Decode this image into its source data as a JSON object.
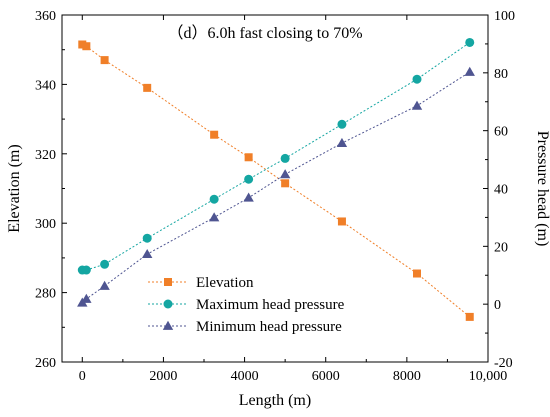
{
  "chart_data": {
    "type": "scatter",
    "title": "（d）6.0h fast closing to 70%",
    "xlabel": "Length (m)",
    "ylabel_left": "Elevation (m)",
    "ylabel_right": "Pressure head (m)",
    "xlim": [
      -500,
      10000
    ],
    "ylim_left": [
      260,
      360
    ],
    "ylim_right": [
      -20,
      100
    ],
    "x_ticks": [
      0,
      2000,
      4000,
      6000,
      8000,
      10000
    ],
    "x_tick_labels": [
      "0",
      "2000",
      "4000",
      "6000",
      "8000",
      "10,000"
    ],
    "y_left_ticks": [
      260,
      280,
      300,
      320,
      340,
      360
    ],
    "y_right_ticks": [
      -20,
      0,
      20,
      40,
      60,
      80,
      100
    ],
    "grid": false,
    "legend_position": "bottom-left",
    "series": [
      {
        "name": "Elevation",
        "axis": "left",
        "marker": "square",
        "color": "#f07f28",
        "x": [
          0,
          100,
          550,
          1600,
          3250,
          4100,
          5000,
          6400,
          8250,
          9550
        ],
        "y": [
          351.5,
          351.0,
          347.0,
          339.0,
          325.5,
          319.0,
          311.5,
          300.5,
          285.5,
          273.0
        ]
      },
      {
        "name": "Maximum head pressure",
        "axis": "right",
        "marker": "circle",
        "color": "#14a6a2",
        "x": [
          0,
          100,
          550,
          1600,
          3250,
          4100,
          5000,
          6400,
          8250,
          9550
        ],
        "y": [
          11.8,
          11.8,
          13.8,
          22.8,
          36.3,
          43.2,
          50.4,
          62.2,
          77.8,
          90.5
        ]
      },
      {
        "name": "Minimum head pressure",
        "axis": "right",
        "marker": "triangle",
        "color": "#4f5591",
        "x": [
          0,
          100,
          550,
          1600,
          3250,
          4100,
          5000,
          6400,
          8250,
          9550
        ],
        "y": [
          0.5,
          1.8,
          6.3,
          17.3,
          30.0,
          36.8,
          44.9,
          55.7,
          68.6,
          80.3
        ]
      }
    ]
  }
}
